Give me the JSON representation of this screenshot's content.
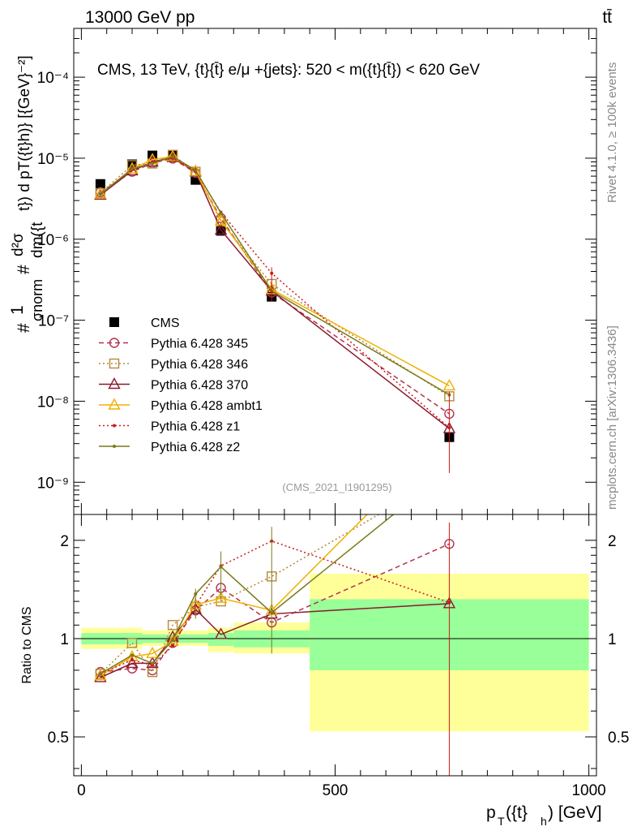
{
  "header": {
    "energy_label": "13000 GeV pp",
    "process_label": "tt̄",
    "rivet_label": "Rivet 4.1.0, ≥ 100k events",
    "mcplots_label": "mcplots.cern.ch [arXiv:1306.3436]"
  },
  "colors": {
    "CMS": "#000000",
    "p345": "#b2334d",
    "p346": "#b8883b",
    "p370": "#8b1a2e",
    "ambt1": "#f0b000",
    "z1": "#cc1a1a",
    "z2": "#7a7a1a",
    "band_inner": "#99ff99",
    "band_outer": "#ffff99"
  },
  "chart_data": [
    {
      "type": "line",
      "panel": "main",
      "title": "CMS, 13 TeV, {t}{t̄} e/μ +{jets}: 520 < m({t}{t̄}) < 620 GeV",
      "ylabel": "1/σnorm d²σ / dm({t}{t̄}) d pT({t}h)  [{GeV}⁻²]",
      "ylabel_parts": {
        "hash1": "#",
        "one": "1",
        "sigma_norm": "σnorm",
        "hash2": "#",
        "d2sigma": "d²σ",
        "dm": "dm({t",
        "tail": "t}) d pT({t}h)} [{GeV}⁻²]"
      },
      "yscale": "log",
      "ylim": [
        4e-10,
        0.0004
      ],
      "xlim": [
        -15,
        1015
      ],
      "yticks": [
        {
          "value": 1e-09,
          "label": "10⁻⁹"
        },
        {
          "value": 1e-08,
          "label": "10⁻⁸"
        },
        {
          "value": 1e-07,
          "label": "10⁻⁷"
        },
        {
          "value": 1e-06,
          "label": "10⁻⁶"
        },
        {
          "value": 1e-05,
          "label": "10⁻⁵"
        },
        {
          "value": 0.0001,
          "label": "10⁻⁴"
        }
      ],
      "watermark": "(CMS_2021_I1901295)",
      "legend_position": "left-middle",
      "x": [
        37.5,
        100,
        140,
        180,
        225,
        275,
        375,
        725
      ],
      "series": [
        {
          "name": "CMS",
          "key": "CMS",
          "style": "square-filled",
          "values": [
            4.8e-06,
            8.4e-06,
            1.08e-05,
            1.07e-05,
            5.4e-06,
            1.27e-06,
            1.95e-07,
            3.6e-09
          ]
        },
        {
          "name": "Pythia 6.428 345",
          "key": "p345",
          "style": "circle-dashed",
          "values": [
            3.8e-06,
            6.8e-06,
            8.7e-06,
            9.9e-06,
            6.6e-06,
            1.82e-06,
            2.2e-07,
            7e-09
          ]
        },
        {
          "name": "Pythia 6.428 346",
          "key": "p346",
          "style": "square-dotted",
          "values": [
            3.7e-06,
            8.2e-06,
            8.6e-06,
            1.1e-05,
            6.8e-06,
            1.65e-06,
            2.8e-07,
            1.15e-08
          ]
        },
        {
          "name": "Pythia 6.428 370",
          "key": "p370",
          "style": "triangle-solid",
          "values": [
            3.5e-06,
            7e-06,
            9e-06,
            1.02e-05,
            6.8e-06,
            1.3e-06,
            2.3e-07,
            4.6e-09
          ]
        },
        {
          "name": "Pythia 6.428 ambt1",
          "key": "ambt1",
          "style": "triangle-solid",
          "values": [
            3.6e-06,
            7.4e-06,
            9.6e-06,
            1.05e-05,
            6.9e-06,
            1.7e-06,
            2.4e-07,
            1.55e-08
          ]
        },
        {
          "name": "Pythia 6.428 z1",
          "key": "z1",
          "style": "dot-dotted",
          "values": [
            3.6e-06,
            7.2e-06,
            9e-06,
            1e-05,
            6.9e-06,
            2.15e-06,
            3.8e-07,
            4.7e-09
          ]
        },
        {
          "name": "Pythia 6.428 z2",
          "key": "z2",
          "style": "dot-solid",
          "values": [
            3.6e-06,
            7.4e-06,
            8.6e-06,
            1.05e-05,
            7.1e-06,
            2.1e-06,
            2.3e-07,
            1.2e-08
          ]
        }
      ]
    },
    {
      "type": "line",
      "panel": "ratio",
      "ylabel": "Ratio to CMS",
      "xlabel": "pT({t}h) [GeV]",
      "xlabel_parts": {
        "pre": "p",
        "sub1": "T",
        "mid": "({t}",
        "sub2": "h",
        "post": ") [GeV]"
      },
      "yscale": "log",
      "ylim": [
        0.38,
        2.4
      ],
      "xlim": [
        -15,
        1015
      ],
      "yticks": [
        {
          "value": 0.5,
          "label": "0.5"
        },
        {
          "value": 1,
          "label": "1"
        },
        {
          "value": 2,
          "label": "2"
        }
      ],
      "xticks": [
        {
          "value": 0,
          "label": "0"
        },
        {
          "value": 500,
          "label": "500"
        },
        {
          "value": 1000,
          "label": "1000"
        }
      ],
      "reference_line": 1,
      "bands": [
        {
          "x0": 0,
          "x1": 120,
          "inner": [
            0.96,
            1.04
          ],
          "outer": [
            0.93,
            1.08
          ]
        },
        {
          "x0": 120,
          "x1": 250,
          "inner": [
            0.97,
            1.03
          ],
          "outer": [
            0.95,
            1.06
          ]
        },
        {
          "x0": 250,
          "x1": 300,
          "inner": [
            0.95,
            1.04
          ],
          "outer": [
            0.91,
            1.08
          ]
        },
        {
          "x0": 300,
          "x1": 450,
          "inner": [
            0.94,
            1.06
          ],
          "outer": [
            0.9,
            1.12
          ]
        },
        {
          "x0": 450,
          "x1": 1000,
          "inner": [
            0.8,
            1.32
          ],
          "outer": [
            0.52,
            1.58
          ]
        }
      ],
      "x": [
        37.5,
        100,
        140,
        180,
        225,
        275,
        375,
        725
      ],
      "series": [
        {
          "name": "Pythia 6.428 345",
          "key": "p345",
          "style": "circle-dashed",
          "values": [
            0.79,
            0.81,
            0.8,
            0.97,
            1.22,
            1.43,
            1.12,
            1.95
          ]
        },
        {
          "name": "Pythia 6.428 346",
          "key": "p346",
          "style": "square-dotted",
          "values": [
            0.78,
            0.97,
            0.79,
            1.1,
            1.25,
            1.3,
            1.55,
            3.2
          ]
        },
        {
          "name": "Pythia 6.428 370",
          "key": "p370",
          "style": "triangle-solid",
          "values": [
            0.76,
            0.84,
            0.84,
            1.01,
            1.23,
            1.03,
            1.19,
            1.28
          ]
        },
        {
          "name": "Pythia 6.428 ambt1",
          "key": "ambt1",
          "style": "triangle-solid",
          "values": [
            0.77,
            0.88,
            0.9,
            0.98,
            1.27,
            1.33,
            1.22,
            4.3
          ]
        },
        {
          "name": "Pythia 6.428 z1",
          "key": "z1",
          "style": "dot-dotted",
          "values": [
            0.78,
            0.86,
            0.83,
            0.95,
            1.26,
            1.67,
            1.99,
            1.29
          ]
        },
        {
          "name": "Pythia 6.428 z2",
          "key": "z2",
          "style": "dot-solid",
          "values": [
            0.78,
            0.89,
            0.84,
            0.99,
            1.37,
            1.66,
            1.2,
            3.3
          ]
        }
      ]
    }
  ]
}
